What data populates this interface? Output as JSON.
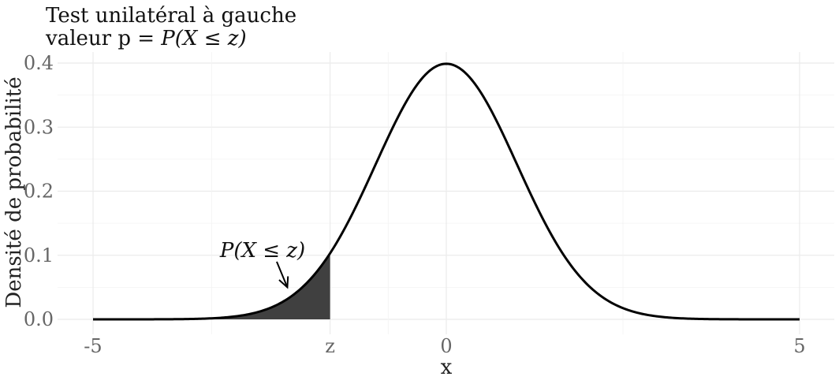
{
  "chart_data": {
    "type": "area",
    "title": {
      "line1": "Test unilatéral à gauche",
      "line2_prefix": "valeur p = ",
      "line2_math": "P(X ≤ z)"
    },
    "xlabel": "x",
    "ylabel": "Densité de probabilité",
    "xlim": [
      -5,
      5
    ],
    "ylim": [
      0,
      0.4
    ],
    "x_ticks": [
      {
        "value": -5,
        "label": "-5"
      },
      {
        "value": -1.645,
        "label": "z"
      },
      {
        "value": 0,
        "label": "0"
      },
      {
        "value": 5,
        "label": "5"
      }
    ],
    "y_ticks": [
      {
        "value": 0.0,
        "label": "0.0"
      },
      {
        "value": 0.1,
        "label": "0.1"
      },
      {
        "value": 0.2,
        "label": "0.2"
      },
      {
        "value": 0.3,
        "label": "0.3"
      },
      {
        "value": 0.4,
        "label": "0.4"
      }
    ],
    "series": [
      {
        "distribution": "standard normal density",
        "x": [
          -5,
          -4.5,
          -4,
          -3.5,
          -3,
          -2.5,
          -2,
          -1.645,
          -1.5,
          -1,
          -0.5,
          0,
          0.5,
          1,
          1.5,
          2,
          2.5,
          3,
          3.5,
          4,
          4.5,
          5
        ],
        "y": [
          1.5e-06,
          1.6e-05,
          0.000134,
          0.000873,
          0.00443,
          0.0175,
          0.054,
          0.1031,
          0.1295,
          0.242,
          0.3521,
          0.3989,
          0.3521,
          0.242,
          0.1295,
          0.054,
          0.0175,
          0.00443,
          0.000873,
          0.000134,
          1.6e-05,
          1.5e-06
        ],
        "color": "#000000"
      }
    ],
    "shaded_region": {
      "from": -5,
      "to": -1.645,
      "color": "#404040"
    },
    "annotation": {
      "text": "P(X ≤ z)",
      "arrow_from": [
        -2.4,
        0.09
      ],
      "arrow_to": [
        -2.25,
        0.05
      ]
    },
    "grid": true,
    "legend": "none"
  }
}
